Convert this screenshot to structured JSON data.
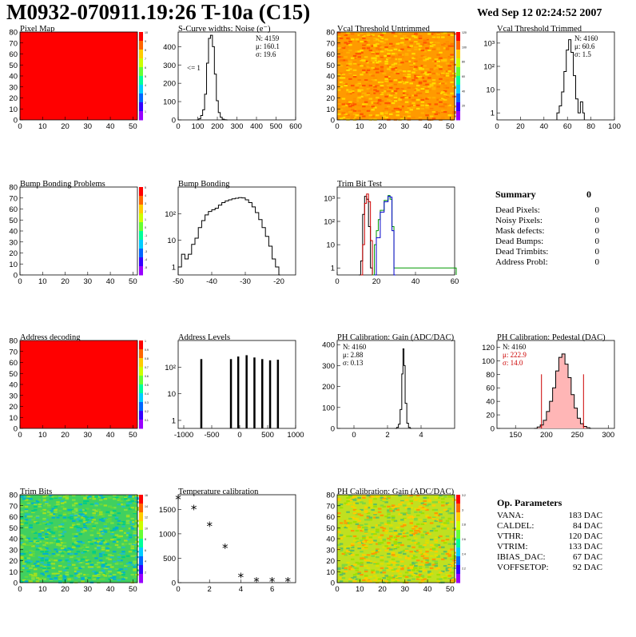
{
  "header": {
    "title": "M0932-070911.19:26 T-10a (C15)",
    "date": "Wed Sep 12 02:24:52 2007"
  },
  "summary": {
    "title": "Summary",
    "total": "0",
    "rows": [
      {
        "label": "Dead Pixels:",
        "value": "0"
      },
      {
        "label": "Noisy Pixels:",
        "value": "0"
      },
      {
        "label": "Mask defects:",
        "value": "0"
      },
      {
        "label": "Dead Bumps:",
        "value": "0"
      },
      {
        "label": "Dead Trimbits:",
        "value": "0"
      },
      {
        "label": "Address Probl:",
        "value": "0"
      }
    ]
  },
  "params": {
    "title": "Op. Parameters",
    "rows": [
      {
        "label": "VANA:",
        "value": "183 DAC"
      },
      {
        "label": "CALDEL:",
        "value": "84 DAC"
      },
      {
        "label": "VTHR:",
        "value": "120 DAC"
      },
      {
        "label": "VTRIM:",
        "value": "133 DAC"
      },
      {
        "label": "IBIAS_DAC:",
        "value": "67 DAC"
      },
      {
        "label": "VOFFSETOP:",
        "value": "92 DAC"
      }
    ]
  },
  "chart_data": [
    {
      "id": "pixel-map",
      "type": "heatmap",
      "title": "Pixel Map",
      "xlim": [
        0,
        52
      ],
      "ylim": [
        0,
        80
      ],
      "xticks": [
        0,
        10,
        20,
        30,
        40,
        50
      ],
      "yticks": [
        0,
        10,
        20,
        30,
        40,
        50,
        60,
        70,
        80
      ],
      "fill": "uniform",
      "value": 10,
      "fill_color": "#ff0000",
      "palette_ticks": [
        "1",
        "2",
        "3",
        "4",
        "5",
        "6",
        "7",
        "8",
        "9",
        "10"
      ]
    },
    {
      "id": "scurve",
      "type": "histogram",
      "title": "S-Curve widths: Noise (e⁻)",
      "xlim": [
        0,
        600
      ],
      "ylim": [
        0,
        480
      ],
      "xticks": [
        0,
        100,
        200,
        300,
        400,
        500,
        600
      ],
      "yticks": [
        0,
        100,
        200,
        300,
        400
      ],
      "ytick_labels": [
        "0",
        "100",
        "200",
        "300",
        "400"
      ],
      "stats": [
        "N: 4159",
        "μ: 160.1",
        "σ: 19.6"
      ],
      "annotation": "<= 1",
      "points": [
        [
          95,
          0
        ],
        [
          105,
          6
        ],
        [
          115,
          24
        ],
        [
          125,
          55
        ],
        [
          135,
          140
        ],
        [
          145,
          310
        ],
        [
          155,
          445
        ],
        [
          165,
          462
        ],
        [
          175,
          400
        ],
        [
          185,
          250
        ],
        [
          195,
          105
        ],
        [
          205,
          40
        ],
        [
          215,
          14
        ],
        [
          225,
          4
        ],
        [
          235,
          1
        ],
        [
          245,
          0
        ]
      ]
    },
    {
      "id": "vcal-untrimmed",
      "type": "heatmap",
      "title": "Vcal Threshold Untrimmed",
      "xlim": [
        0,
        52
      ],
      "ylim": [
        0,
        80
      ],
      "xticks": [
        0,
        10,
        20,
        30,
        40,
        50
      ],
      "yticks": [
        0,
        10,
        20,
        30,
        40,
        50,
        60,
        70,
        80
      ],
      "fill": "noise",
      "palette_ticks": [
        "20",
        "40",
        "60",
        "80",
        "100",
        "120"
      ],
      "base_color": "#ff9a00",
      "noise_colors": [
        "#ff7a00",
        "#ffb000",
        "#ffcc00",
        "#ff5500",
        "#ffdd00",
        "#ff9000"
      ]
    },
    {
      "id": "vcal-trimmed",
      "type": "histogram",
      "title": "Vcal Threshold Trimmed",
      "xlim": [
        0,
        100
      ],
      "log": true,
      "ylim": [
        0.5,
        3000
      ],
      "xticks": [
        0,
        20,
        40,
        60,
        80,
        100
      ],
      "yticks": [
        1,
        10,
        100,
        1000
      ],
      "ytick_labels": [
        "1",
        "10",
        "10²",
        "10³"
      ],
      "stats": [
        "N: 4160",
        "μ: 60.6",
        "σ: 1.5"
      ],
      "points": [
        [
          51,
          1
        ],
        [
          53,
          2
        ],
        [
          55,
          8
        ],
        [
          57,
          60
        ],
        [
          59,
          500
        ],
        [
          61,
          1400
        ],
        [
          63,
          400
        ],
        [
          65,
          40
        ],
        [
          67,
          4
        ],
        [
          69,
          1
        ],
        [
          71,
          3
        ],
        [
          73,
          1
        ]
      ]
    },
    {
      "id": "bump-problems",
      "type": "heatmap",
      "title": "Bump Bonding Problems",
      "xlim": [
        0,
        52
      ],
      "ylim": [
        0,
        80
      ],
      "xticks": [
        0,
        10,
        20,
        30,
        40,
        50
      ],
      "yticks": [
        0,
        10,
        20,
        30,
        40,
        50,
        60,
        70,
        80
      ],
      "fill": "empty",
      "palette_ticks": [
        "-5",
        "-4",
        "-3",
        "-2",
        "-1",
        "0",
        "1",
        "2",
        "3",
        "4",
        "5"
      ]
    },
    {
      "id": "bump-bonding",
      "type": "histogram",
      "title": "Bump Bonding",
      "xlim": [
        -50,
        -15
      ],
      "log": true,
      "ylim": [
        0.5,
        1000
      ],
      "xticks": [
        -50,
        -40,
        -30,
        -20
      ],
      "yticks": [
        1,
        10,
        100
      ],
      "ytick_labels": [
        "1",
        "10",
        "10²"
      ],
      "points": [
        [
          -50,
          1
        ],
        [
          -49,
          3
        ],
        [
          -48,
          2
        ],
        [
          -47,
          3
        ],
        [
          -46,
          7
        ],
        [
          -45,
          12
        ],
        [
          -44,
          30
        ],
        [
          -43,
          55
        ],
        [
          -42,
          90
        ],
        [
          -41,
          120
        ],
        [
          -40,
          140
        ],
        [
          -39,
          160
        ],
        [
          -38,
          210
        ],
        [
          -37,
          260
        ],
        [
          -36,
          300
        ],
        [
          -35,
          330
        ],
        [
          -34,
          360
        ],
        [
          -33,
          380
        ],
        [
          -32,
          400
        ],
        [
          -31,
          390
        ],
        [
          -30,
          330
        ],
        [
          -29,
          260
        ],
        [
          -28,
          180
        ],
        [
          -27,
          110
        ],
        [
          -26,
          60
        ],
        [
          -25,
          30
        ],
        [
          -24,
          14
        ],
        [
          -23,
          6
        ],
        [
          -22,
          2
        ],
        [
          -21,
          1
        ],
        [
          -20,
          0.5
        ]
      ]
    },
    {
      "id": "trim-bit-test",
      "type": "line",
      "title": "Trim Bit Test",
      "xlim": [
        0,
        60
      ],
      "log": true,
      "ylim": [
        0.5,
        3000
      ],
      "xticks": [
        0,
        20,
        40,
        60
      ],
      "yticks": [
        1,
        10,
        100,
        1000
      ],
      "ytick_labels": [
        "1",
        "10",
        "10²",
        "10³"
      ],
      "series": [
        {
          "color": "#000000",
          "points": [
            [
              11,
              0.5
            ],
            [
              12,
              2
            ],
            [
              13,
              200
            ],
            [
              14,
              1200
            ],
            [
              15,
              900
            ],
            [
              16,
              60
            ],
            [
              17,
              1
            ],
            [
              18,
              0.5
            ]
          ]
        },
        {
          "color": "#cc0000",
          "points": [
            [
              12,
              0.5
            ],
            [
              13,
              10
            ],
            [
              14,
              600
            ],
            [
              15,
              1500
            ],
            [
              16,
              700
            ],
            [
              17,
              15
            ],
            [
              18,
              0.5
            ]
          ]
        },
        {
          "color": "#009900",
          "points": [
            [
              18,
              0.5
            ],
            [
              19,
              10
            ],
            [
              20,
              40
            ],
            [
              21,
              120
            ],
            [
              22,
              300
            ],
            [
              24,
              800
            ],
            [
              26,
              1300
            ],
            [
              27,
              900
            ],
            [
              28,
              60
            ],
            [
              29,
              1
            ],
            [
              60,
              1
            ]
          ]
        },
        {
          "color": "#0000cc",
          "points": [
            [
              19,
              0.5
            ],
            [
              20,
              20
            ],
            [
              22,
              250
            ],
            [
              24,
              700
            ],
            [
              26,
              1200
            ],
            [
              27,
              1100
            ],
            [
              28,
              40
            ],
            [
              29,
              0.5
            ]
          ]
        }
      ]
    },
    {
      "id": "address-decoding",
      "type": "heatmap",
      "title": "Address decoding",
      "xlim": [
        0,
        52
      ],
      "ylim": [
        0,
        80
      ],
      "xticks": [
        0,
        10,
        20,
        30,
        40,
        50
      ],
      "yticks": [
        0,
        10,
        20,
        30,
        40,
        50,
        60,
        70,
        80
      ],
      "fill": "uniform",
      "value": 1,
      "fill_color": "#ff0000",
      "palette_ticks": [
        "0.1",
        "0.2",
        "0.3",
        "0.4",
        "0.5",
        "0.6",
        "0.7",
        "0.8",
        "0.9",
        "1"
      ]
    },
    {
      "id": "address-levels",
      "type": "histogram",
      "title": "Address Levels",
      "xlim": [
        -1100,
        1000
      ],
      "log": true,
      "ylim": [
        0.5,
        1000
      ],
      "xticks": [
        -1000,
        -500,
        0,
        500,
        1000
      ],
      "yticks": [
        1,
        10,
        100
      ],
      "ytick_labels": [
        "1",
        "10",
        "10²"
      ],
      "peaks": [
        -690,
        -160,
        -30,
        120,
        260,
        400,
        540,
        680
      ],
      "peak_heights": [
        200,
        200,
        250,
        280,
        230,
        200,
        180,
        190
      ]
    },
    {
      "id": "ph-gain",
      "type": "histogram",
      "title": "PH Calibration: Gain (ADC/DAC)",
      "xlim": [
        -1,
        6
      ],
      "ylim": [
        0,
        420
      ],
      "xticks": [
        0,
        2,
        4
      ],
      "yticks": [
        0,
        100,
        200,
        300,
        400
      ],
      "ytick_labels": [
        "0",
        "100",
        "200",
        "300",
        "400"
      ],
      "stats": [
        "N: 4160",
        "μ: 2.88",
        "σ: 0.13"
      ],
      "points": [
        [
          2.45,
          0
        ],
        [
          2.55,
          5
        ],
        [
          2.65,
          20
        ],
        [
          2.75,
          90
        ],
        [
          2.85,
          260
        ],
        [
          2.92,
          380
        ],
        [
          2.98,
          300
        ],
        [
          3.05,
          120
        ],
        [
          3.15,
          25
        ],
        [
          3.25,
          5
        ],
        [
          3.35,
          0
        ]
      ]
    },
    {
      "id": "ph-pedestal",
      "type": "histogram",
      "title": "PH Calibration: Pedestal (DAC)",
      "xlim": [
        120,
        310
      ],
      "ylim": [
        0,
        130
      ],
      "xticks": [
        150,
        200,
        250,
        300
      ],
      "yticks": [
        0,
        20,
        40,
        60,
        80,
        100,
        120
      ],
      "ytick_labels": [
        "0",
        "20",
        "40",
        "60",
        "80",
        "100",
        "120"
      ],
      "stats": [
        "N: 4160",
        "μ: 222.9",
        "σ: 14.0"
      ],
      "stats_colors": [
        "#000",
        "#cc0000",
        "#cc0000"
      ],
      "vlines": [
        192,
        260
      ],
      "points": [
        [
          180,
          0
        ],
        [
          185,
          2
        ],
        [
          190,
          5
        ],
        [
          195,
          12
        ],
        [
          200,
          25
        ],
        [
          205,
          40
        ],
        [
          210,
          60
        ],
        [
          215,
          85
        ],
        [
          220,
          105
        ],
        [
          225,
          110
        ],
        [
          230,
          95
        ],
        [
          235,
          75
        ],
        [
          240,
          50
        ],
        [
          245,
          30
        ],
        [
          250,
          15
        ],
        [
          255,
          7
        ],
        [
          260,
          3
        ],
        [
          265,
          1
        ],
        [
          270,
          0
        ]
      ]
    },
    {
      "id": "trim-bits",
      "type": "heatmap",
      "title": "Trim Bits",
      "xlim": [
        0,
        52
      ],
      "ylim": [
        0,
        80
      ],
      "xticks": [
        0,
        10,
        20,
        30,
        40,
        50
      ],
      "yticks": [
        0,
        10,
        20,
        30,
        40,
        50,
        60,
        70,
        80
      ],
      "fill": "noise",
      "palette_ticks": [
        "2",
        "4",
        "6",
        "8",
        "10",
        "12",
        "14",
        "16"
      ],
      "base_color": "#40d060",
      "noise_colors": [
        "#00cc88",
        "#80e040",
        "#20c0c0",
        "#a0e020",
        "#00b0d0",
        "#60d840"
      ]
    },
    {
      "id": "temperature",
      "type": "scatter",
      "title": "Temperature calibration",
      "xlim": [
        0,
        7.5
      ],
      "ylim": [
        0,
        1800
      ],
      "xticks": [
        0,
        2,
        4,
        6
      ],
      "yticks": [
        0,
        500,
        1000,
        1500
      ],
      "ytick_labels": [
        "0",
        "500",
        "1000",
        "1500"
      ],
      "points": [
        [
          0,
          1700
        ],
        [
          1,
          1500
        ],
        [
          2,
          1150
        ],
        [
          3,
          700
        ],
        [
          4,
          110
        ],
        [
          5,
          20
        ],
        [
          6,
          20
        ],
        [
          7,
          20
        ]
      ]
    },
    {
      "id": "ph-gain-map",
      "type": "heatmap",
      "title": "PH Calibration: Gain (ADC/DAC)",
      "xlim": [
        0,
        52
      ],
      "ylim": [
        0,
        80
      ],
      "xticks": [
        0,
        10,
        20,
        30,
        40,
        50
      ],
      "yticks": [
        0,
        10,
        20,
        30,
        40,
        50,
        60,
        70,
        80
      ],
      "fill": "noise",
      "palette_ticks": [
        "2.2",
        "2.4",
        "2.6",
        "2.8",
        "3",
        "3.2"
      ],
      "base_color": "#c0e020",
      "noise_colors": [
        "#ffcc00",
        "#80d840",
        "#ff9900",
        "#a0e000",
        "#e0e000",
        "#60c060"
      ]
    }
  ]
}
